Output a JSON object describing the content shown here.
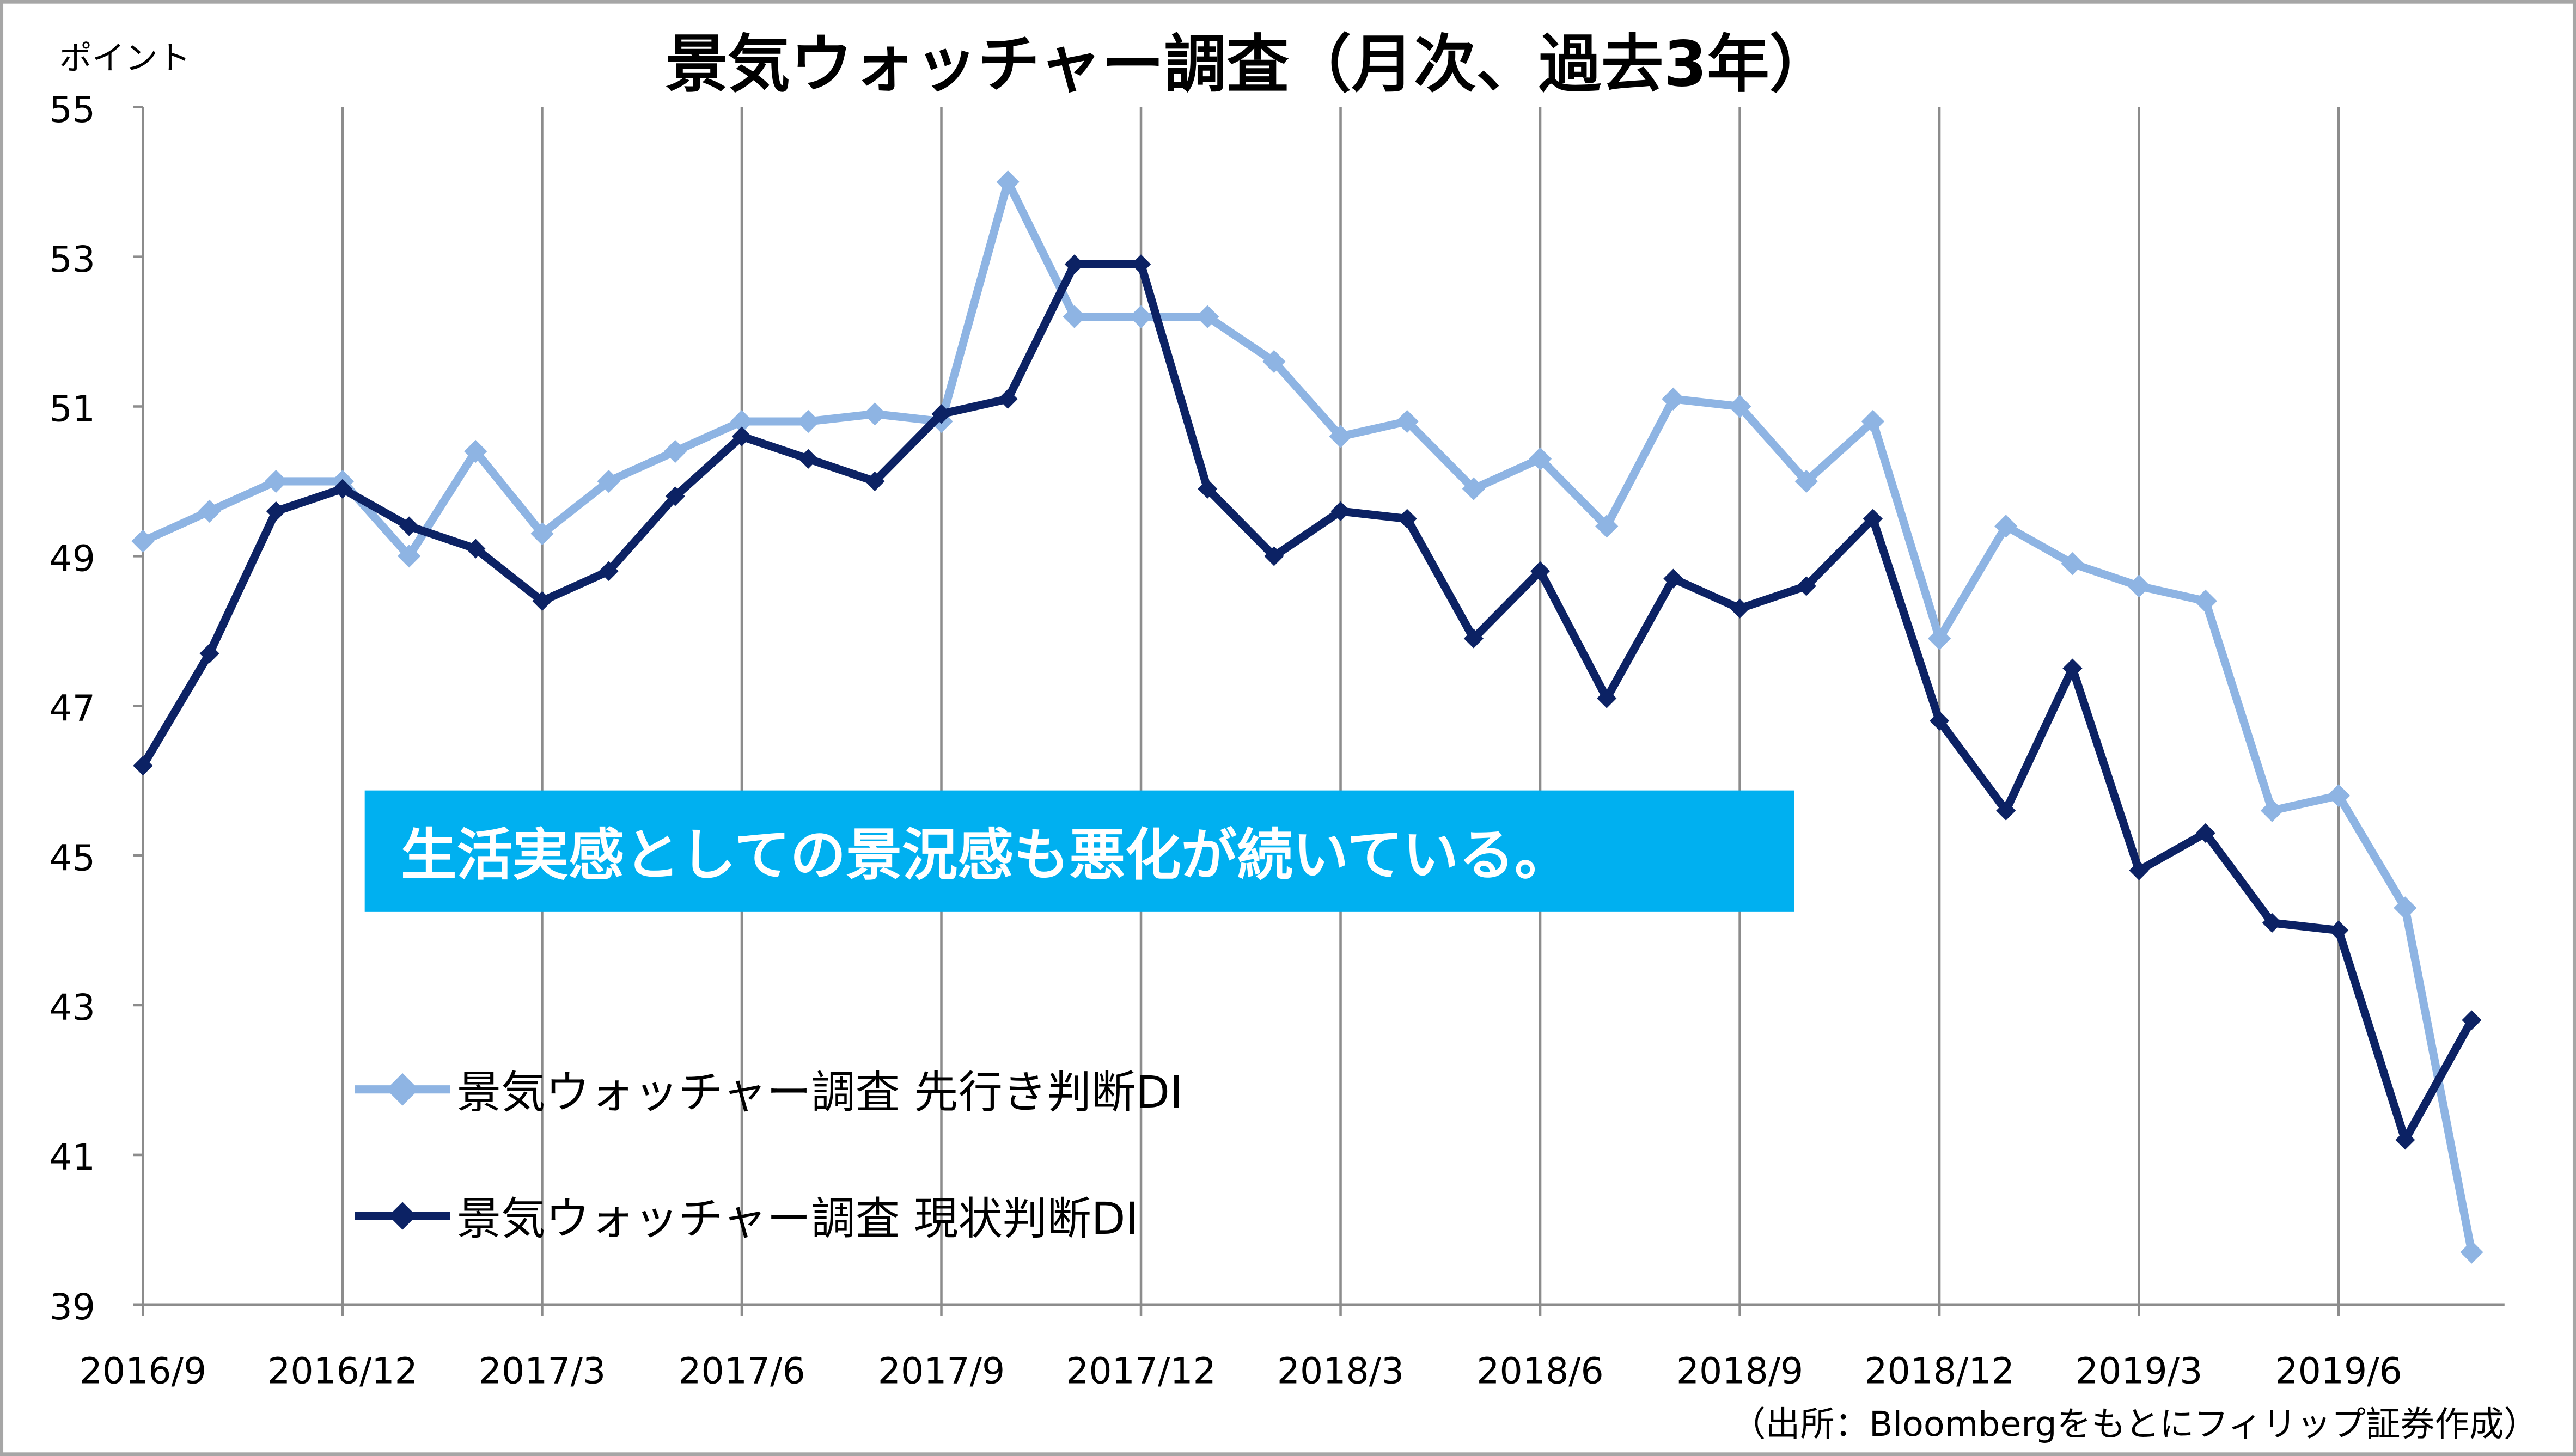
{
  "chart_data": {
    "type": "line",
    "title": "景気ウォッチャー調査（月次、過去3年）",
    "ylabel": "ポイント",
    "xlabel": "",
    "ylim": [
      39,
      55
    ],
    "yticks": [
      "39",
      "41",
      "43",
      "45",
      "47",
      "49",
      "51",
      "53",
      "55"
    ],
    "x_tick_labels": [
      "2016/9",
      "2016/12",
      "2017/3",
      "2017/6",
      "2017/9",
      "2017/12",
      "2018/3",
      "2018/6",
      "2018/9",
      "2018/12",
      "2019/3",
      "2019/6"
    ],
    "x_start": "2016/9",
    "x_end": "2019/8",
    "grid": "vertical every 3 months",
    "series": [
      {
        "name": "景気ウォッチャー調査 先行き判断DI",
        "color": "#8EB4E3",
        "values": [
          49.2,
          49.6,
          50.0,
          50.0,
          49.0,
          50.4,
          49.3,
          50.0,
          50.4,
          50.8,
          50.8,
          50.9,
          50.8,
          54.0,
          52.2,
          52.2,
          52.2,
          51.6,
          50.6,
          50.8,
          49.9,
          50.3,
          49.4,
          51.1,
          51.0,
          50.0,
          50.8,
          47.9,
          49.4,
          48.9,
          48.6,
          48.4,
          45.6,
          45.8,
          44.3,
          39.7
        ]
      },
      {
        "name": "景気ウォッチャー調査 現状判断DI",
        "color": "#0C2264",
        "values": [
          46.2,
          47.7,
          49.6,
          49.9,
          49.4,
          49.1,
          48.4,
          48.8,
          49.8,
          50.6,
          50.3,
          50.0,
          50.9,
          51.1,
          52.9,
          52.9,
          49.9,
          49.0,
          49.6,
          49.5,
          47.9,
          48.8,
          47.1,
          48.7,
          48.3,
          48.6,
          49.5,
          46.8,
          45.6,
          47.5,
          44.8,
          45.3,
          44.1,
          44.0,
          41.2,
          42.8
        ]
      }
    ],
    "legend_placement": "bottom-left",
    "annotation": "生活実感としての景況感も悪化が続いている。",
    "annotation_color": "#00B0F0",
    "source": "（出所：Bloombergをもとにフィリップ証券作成）"
  }
}
